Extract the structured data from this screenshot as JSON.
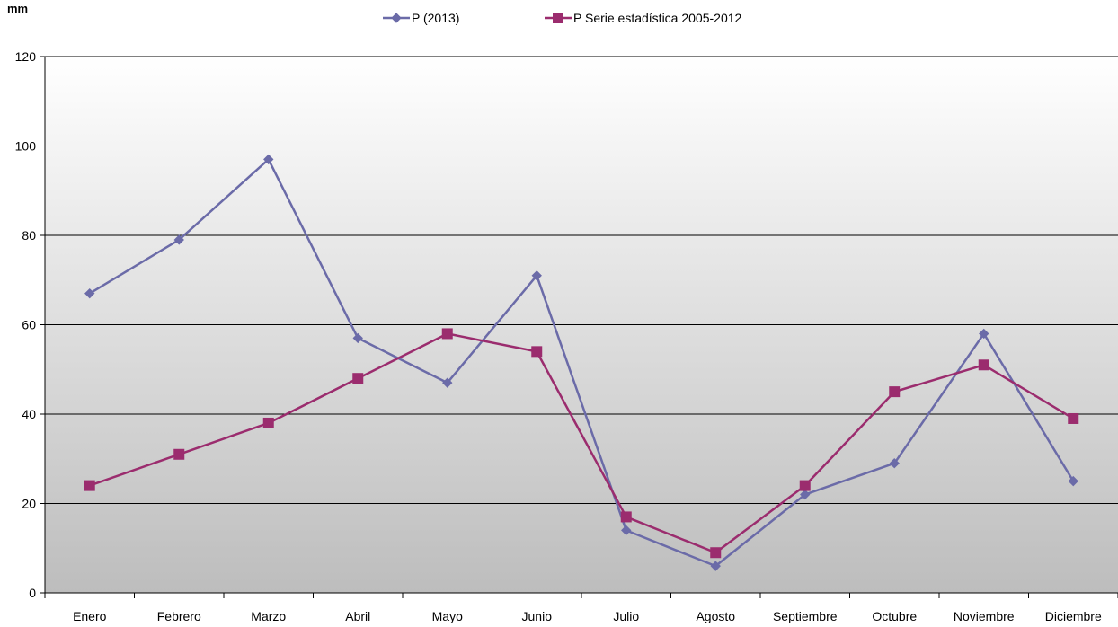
{
  "chart_data": {
    "type": "line",
    "ylabel": "mm",
    "ylim": [
      0,
      120
    ],
    "yticks": [
      0,
      20,
      40,
      60,
      80,
      100,
      120
    ],
    "grid": true,
    "legend_position": "top",
    "categories": [
      "Enero",
      "Febrero",
      "Marzo",
      "Abril",
      "Mayo",
      "Junio",
      "Julio",
      "Agosto",
      "Septiembre",
      "Octubre",
      "Noviembre",
      "Diciembre"
    ],
    "series": [
      {
        "name": "P (2013)",
        "marker": "diamond",
        "color": "#6B6BA8",
        "values": [
          67,
          79,
          97,
          57,
          47,
          71,
          14,
          6,
          22,
          29,
          58,
          25
        ]
      },
      {
        "name": "P Serie estadística 2005-2012",
        "marker": "square",
        "color": "#9B2C6E",
        "values": [
          24,
          31,
          38,
          48,
          58,
          54,
          17,
          9,
          24,
          45,
          51,
          39
        ]
      }
    ]
  }
}
